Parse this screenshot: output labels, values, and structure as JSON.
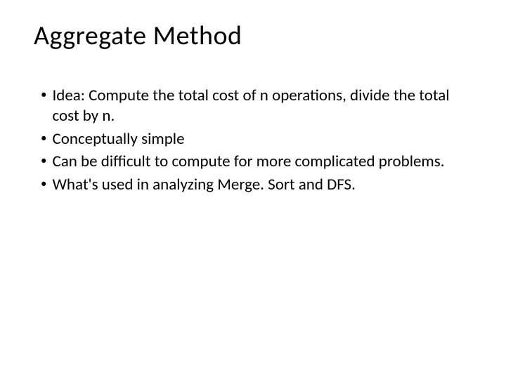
{
  "slide": {
    "title": "Aggregate Method",
    "bullets": [
      "Idea: Compute the total cost of n operations, divide the total cost by n.",
      "Conceptually simple",
      "Can be difficult to compute for more complicated problems.",
      "What's used in analyzing Merge. Sort and DFS."
    ],
    "title_fontsize": 38,
    "body_fontsize": 23,
    "background_color": "#ffffff",
    "text_color": "#000000"
  }
}
